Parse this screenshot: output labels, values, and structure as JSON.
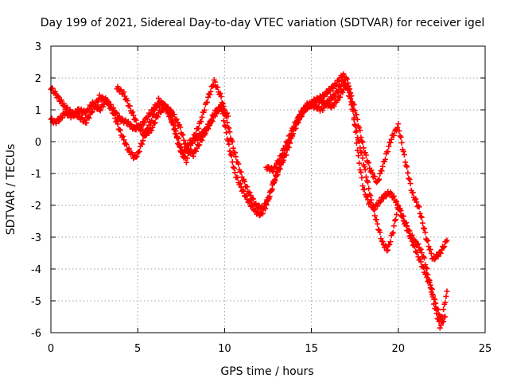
{
  "chart_data": {
    "type": "scatter",
    "title": "Day 199 of 2021, Sidereal Day-to-day VTEC variation (SDTVAR) for receiver igel",
    "xlabel": "GPS time / hours",
    "ylabel": "SDTVAR / TECUs",
    "xlim": [
      0,
      25
    ],
    "ylim": [
      -6,
      3
    ],
    "xticks": [
      0,
      5,
      10,
      15,
      20,
      25
    ],
    "yticks": [
      3,
      2,
      1,
      0,
      -1,
      -2,
      -3,
      -4,
      -5,
      -6
    ],
    "grid": true,
    "marker": "+",
    "color": "#ff0000",
    "series": [
      {
        "x": [
          0.0,
          0.2,
          0.5,
          0.8,
          1.2,
          1.6,
          2.0,
          2.4,
          2.8,
          3.2,
          3.6,
          4.0,
          4.4,
          4.8,
          5.2,
          5.6,
          6.0,
          6.4,
          6.8,
          7.2,
          7.6,
          8.0,
          8.4,
          8.8,
          9.2,
          9.5,
          9.8,
          10.2,
          10.6,
          11.0,
          11.4,
          11.8,
          12.1,
          12.4,
          12.8,
          13.2,
          13.6,
          14.0,
          14.4,
          14.8,
          15.2,
          15.6,
          16.0,
          16.4,
          16.8,
          17.1,
          17.4,
          17.7,
          18.0,
          18.3,
          18.6,
          18.9,
          19.2,
          19.5,
          19.8,
          20.1,
          20.4,
          20.7,
          21.0,
          21.3,
          21.6,
          21.9,
          22.2,
          22.5,
          22.8
        ],
        "y": [
          0.7,
          0.6,
          0.7,
          0.9,
          0.8,
          1.0,
          0.9,
          1.2,
          1.0,
          1.3,
          1.0,
          0.7,
          0.6,
          0.4,
          0.5,
          0.8,
          1.1,
          1.2,
          0.9,
          0.3,
          -0.4,
          0.0,
          0.1,
          0.3,
          0.6,
          0.9,
          1.1,
          0.0,
          -1.0,
          -1.5,
          -1.9,
          -2.2,
          -2.3,
          -2.0,
          -1.3,
          -0.8,
          -0.3,
          0.4,
          0.9,
          1.1,
          1.3,
          1.4,
          1.6,
          1.8,
          2.1,
          1.9,
          1.0,
          -0.5,
          -1.5,
          -1.9,
          -2.1,
          -1.9,
          -1.7,
          -1.6,
          -1.8,
          -2.2,
          -2.6,
          -3.0,
          -3.4,
          -3.8,
          -4.2,
          -4.6,
          -5.2,
          -5.6,
          -4.7
        ]
      },
      {
        "x": [
          0.0,
          0.4,
          0.8,
          1.2,
          1.6,
          2.0,
          2.4,
          2.8,
          3.2,
          3.6,
          4.0,
          4.4,
          4.8,
          5.0,
          5.4,
          5.8,
          6.2,
          6.6,
          7.0,
          7.4,
          7.8,
          8.2,
          8.6,
          9.0,
          9.4,
          9.8,
          10.2,
          10.6,
          11.0,
          11.4,
          11.8,
          12.2,
          12.6,
          13.0,
          13.4,
          13.8,
          14.2,
          14.6,
          15.0,
          15.4,
          15.8,
          16.2,
          16.6,
          17.0,
          17.3,
          17.6,
          17.9,
          18.2,
          18.5,
          18.8,
          19.1,
          19.4,
          19.7,
          20.0,
          20.3,
          20.6,
          20.9,
          21.2,
          21.5,
          21.8,
          22.1,
          22.4,
          22.7
        ],
        "y": [
          1.7,
          1.4,
          1.1,
          0.9,
          0.8,
          0.6,
          1.0,
          1.4,
          1.3,
          0.9,
          0.3,
          -0.2,
          -0.5,
          -0.4,
          0.2,
          0.7,
          1.3,
          1.1,
          0.6,
          -0.2,
          -0.6,
          0.1,
          0.6,
          1.3,
          1.9,
          1.4,
          0.5,
          -0.4,
          -1.1,
          -1.6,
          -2.0,
          -2.1,
          -1.7,
          -1.0,
          -0.4,
          0.1,
          0.6,
          1.0,
          1.2,
          1.3,
          1.2,
          1.1,
          1.4,
          1.8,
          1.2,
          0.3,
          -0.4,
          -1.2,
          -2.0,
          -2.6,
          -3.2,
          -3.4,
          -2.8,
          -2.0,
          -2.4,
          -2.8,
          -3.1,
          -3.3,
          -3.7,
          -4.4,
          -5.2,
          -5.8,
          -5.5
        ]
      },
      {
        "x": [
          3.8,
          4.2,
          4.6,
          5.0,
          5.4,
          5.8,
          6.2,
          6.6,
          7.0,
          7.4,
          7.8,
          8.2,
          8.6,
          9.0,
          9.4,
          9.8,
          10.2,
          12.4,
          12.8,
          13.2,
          13.6,
          14.0,
          14.4,
          14.8,
          15.2,
          15.6,
          16.0,
          16.4,
          16.8,
          17.2,
          17.6,
          18.0,
          18.4,
          18.8,
          19.2,
          19.6,
          20.0,
          20.4,
          20.8,
          21.2,
          21.6,
          22.0,
          22.4,
          22.8
        ],
        "y": [
          1.7,
          1.5,
          1.0,
          0.5,
          0.2,
          0.4,
          0.9,
          1.1,
          0.9,
          0.5,
          -0.2,
          -0.4,
          0.0,
          0.4,
          0.9,
          1.1,
          0.8,
          -0.8,
          -0.9,
          -0.5,
          0.0,
          0.5,
          0.9,
          1.2,
          1.1,
          1.0,
          1.3,
          1.5,
          1.9,
          1.6,
          0.8,
          -0.2,
          -0.9,
          -1.3,
          -0.6,
          0.1,
          0.5,
          -0.6,
          -1.6,
          -2.1,
          -3.0,
          -3.7,
          -3.5,
          -3.1
        ]
      }
    ]
  }
}
